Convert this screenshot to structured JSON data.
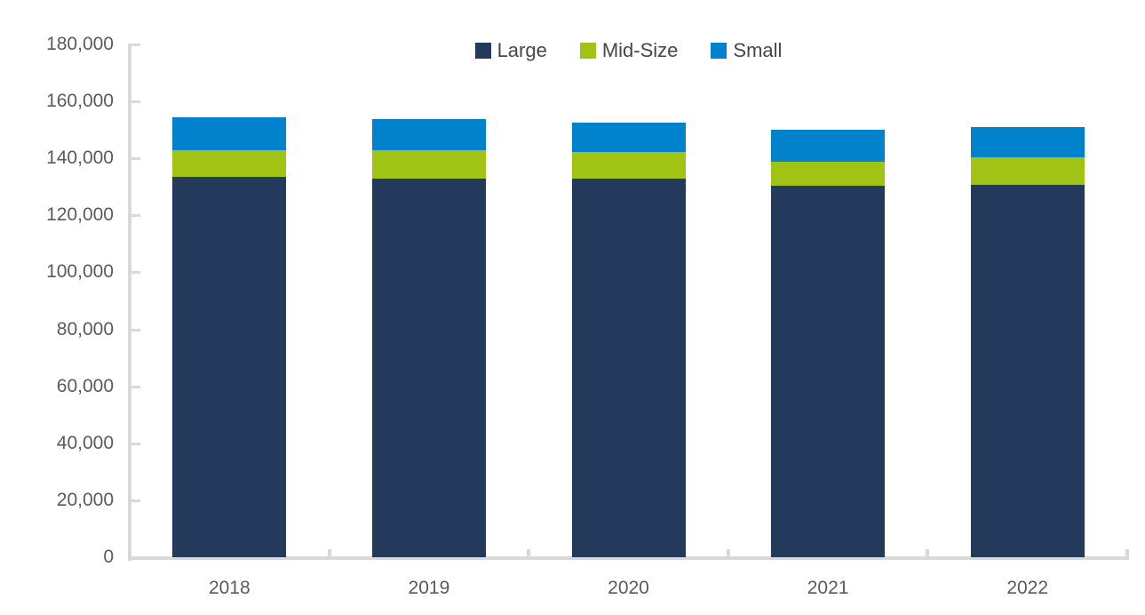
{
  "chart_data": {
    "type": "bar",
    "stacked": true,
    "title": "",
    "xlabel": "",
    "ylabel": "",
    "categories": [
      "2018",
      "2019",
      "2020",
      "2021",
      "2022"
    ],
    "series": [
      {
        "name": "Large",
        "color": "#243A5C",
        "values": [
          133500,
          133000,
          132900,
          130400,
          130600
        ]
      },
      {
        "name": "Mid-Size",
        "color": "#A1C414",
        "values": [
          9400,
          10000,
          9300,
          8400,
          9800
        ]
      },
      {
        "name": "Small",
        "color": "#0082CD",
        "values": [
          11600,
          10700,
          10300,
          11200,
          10600
        ]
      }
    ],
    "totals": [
      154500,
      153700,
      152500,
      150000,
      151000
    ],
    "ylim": [
      0,
      180000
    ],
    "ytick_step": 20000,
    "ytick_labels": [
      "0",
      "20,000",
      "40,000",
      "60,000",
      "80,000",
      "100,000",
      "120,000",
      "140,000",
      "160,000",
      "180,000"
    ],
    "legend_position": "top-center",
    "grid": false,
    "axis_color": "#D9D9D9",
    "label_color": "#5A5A5A",
    "legend_text_color": "#474747"
  }
}
